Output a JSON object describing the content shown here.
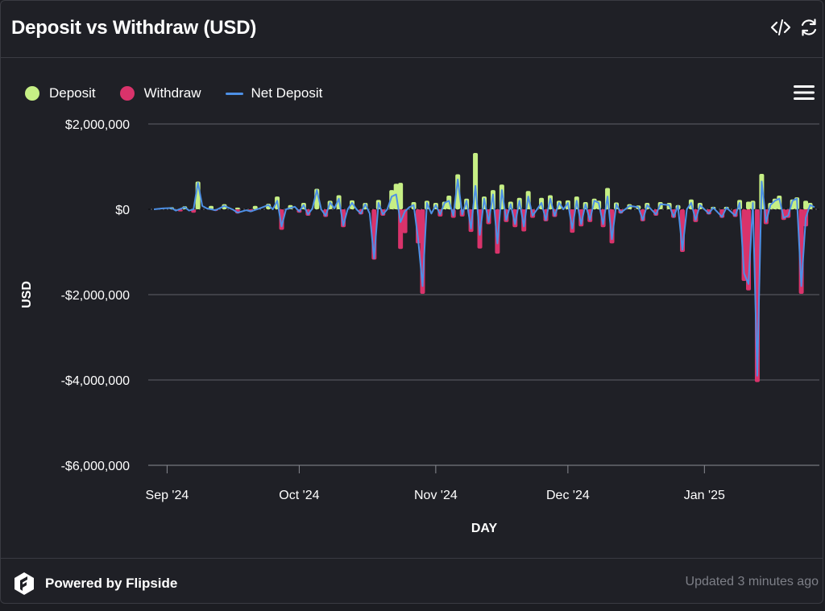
{
  "header": {
    "title": "Deposit vs Withdraw (USD)",
    "embed_icon": "code-icon",
    "refresh_icon": "refresh-icon"
  },
  "legend": {
    "items": [
      {
        "label": "Deposit",
        "color": "#c6ef85",
        "shape": "dot"
      },
      {
        "label": "Withdraw",
        "color": "#d9336b",
        "shape": "dot"
      },
      {
        "label": "Net Deposit",
        "color": "#4d90e6",
        "shape": "line"
      }
    ]
  },
  "menu_icon": "hamburger-menu-icon",
  "footer": {
    "brand": "Powered by Flipside",
    "brand_icon": "flipside-logo-icon",
    "updated": "Updated 3 minutes ago"
  },
  "chart_data": {
    "type": "bar",
    "xlabel": "DAY",
    "ylabel": "USD",
    "ylim": [
      -6000000,
      2000000
    ],
    "yticks": [
      2000000,
      0,
      -2000000,
      -4000000,
      -6000000
    ],
    "ytick_labels": [
      "$2,000,000",
      "$0",
      "-$2,000,000",
      "-$4,000,000",
      "-$6,000,000"
    ],
    "x_start": "2024-08-29",
    "x_end": "2025-01-26",
    "xticks": [
      {
        "date": "2024-09-01",
        "label": "Sep '24"
      },
      {
        "date": "2024-10-01",
        "label": "Oct '24"
      },
      {
        "date": "2024-11-01",
        "label": "Nov '24"
      },
      {
        "date": "2024-12-01",
        "label": "Dec '24"
      },
      {
        "date": "2025-01-01",
        "label": "Jan '25"
      }
    ],
    "grid": true,
    "legend_position": "top-left",
    "series": [
      {
        "name": "Deposit",
        "type": "bar",
        "color": "#c6ef85",
        "points": [
          [
            "2024-09-02",
            50000
          ],
          [
            "2024-09-05",
            70000
          ],
          [
            "2024-09-08",
            650000
          ],
          [
            "2024-09-11",
            80000
          ],
          [
            "2024-09-14",
            120000
          ],
          [
            "2024-09-17",
            40000
          ],
          [
            "2024-09-21",
            80000
          ],
          [
            "2024-09-24",
            130000
          ],
          [
            "2024-09-26",
            300000
          ],
          [
            "2024-09-29",
            100000
          ],
          [
            "2024-10-02",
            150000
          ],
          [
            "2024-10-05",
            480000
          ],
          [
            "2024-10-08",
            200000
          ],
          [
            "2024-10-10",
            330000
          ],
          [
            "2024-10-13",
            210000
          ],
          [
            "2024-10-16",
            150000
          ],
          [
            "2024-10-19",
            220000
          ],
          [
            "2024-10-22",
            450000
          ],
          [
            "2024-10-23",
            600000
          ],
          [
            "2024-10-24",
            620000
          ],
          [
            "2024-10-27",
            170000
          ],
          [
            "2024-10-30",
            200000
          ],
          [
            "2024-11-01",
            150000
          ],
          [
            "2024-11-03",
            180000
          ],
          [
            "2024-11-04",
            320000
          ],
          [
            "2024-11-06",
            820000
          ],
          [
            "2024-11-08",
            250000
          ],
          [
            "2024-11-10",
            1320000
          ],
          [
            "2024-11-12",
            300000
          ],
          [
            "2024-11-14",
            450000
          ],
          [
            "2024-11-16",
            580000
          ],
          [
            "2024-11-18",
            180000
          ],
          [
            "2024-11-20",
            270000
          ],
          [
            "2024-11-22",
            430000
          ],
          [
            "2024-11-25",
            270000
          ],
          [
            "2024-11-27",
            330000
          ],
          [
            "2024-11-29",
            200000
          ],
          [
            "2024-12-01",
            210000
          ],
          [
            "2024-12-03",
            300000
          ],
          [
            "2024-12-05",
            170000
          ],
          [
            "2024-12-07",
            250000
          ],
          [
            "2024-12-08",
            200000
          ],
          [
            "2024-12-10",
            500000
          ],
          [
            "2024-12-12",
            160000
          ],
          [
            "2024-12-15",
            120000
          ],
          [
            "2024-12-17",
            90000
          ],
          [
            "2024-12-19",
            150000
          ],
          [
            "2024-12-22",
            170000
          ],
          [
            "2024-12-24",
            150000
          ],
          [
            "2024-12-26",
            100000
          ],
          [
            "2024-12-29",
            230000
          ],
          [
            "2024-12-31",
            150000
          ],
          [
            "2025-01-03",
            60000
          ],
          [
            "2025-01-06",
            60000
          ],
          [
            "2025-01-09",
            220000
          ],
          [
            "2025-01-11",
            180000
          ],
          [
            "2025-01-12",
            200000
          ],
          [
            "2025-01-14",
            830000
          ],
          [
            "2025-01-16",
            150000
          ],
          [
            "2025-01-17",
            250000
          ],
          [
            "2025-01-18",
            320000
          ],
          [
            "2025-01-21",
            230000
          ],
          [
            "2025-01-22",
            280000
          ],
          [
            "2025-01-24",
            200000
          ],
          [
            "2025-01-25",
            150000
          ]
        ]
      },
      {
        "name": "Withdraw",
        "type": "bar",
        "color": "#d9336b",
        "points": [
          [
            "2024-09-04",
            -50000
          ],
          [
            "2024-09-07",
            -80000
          ],
          [
            "2024-09-12",
            -40000
          ],
          [
            "2024-09-17",
            -100000
          ],
          [
            "2024-09-20",
            -60000
          ],
          [
            "2024-09-27",
            -480000
          ],
          [
            "2024-10-01",
            -80000
          ],
          [
            "2024-10-03",
            -150000
          ],
          [
            "2024-10-07",
            -180000
          ],
          [
            "2024-10-11",
            -420000
          ],
          [
            "2024-10-15",
            -120000
          ],
          [
            "2024-10-18",
            -1180000
          ],
          [
            "2024-10-20",
            -150000
          ],
          [
            "2024-10-24",
            -930000
          ],
          [
            "2024-10-25",
            -560000
          ],
          [
            "2024-10-28",
            -800000
          ],
          [
            "2024-10-29",
            -1980000
          ],
          [
            "2024-11-02",
            -170000
          ],
          [
            "2024-11-05",
            -200000
          ],
          [
            "2024-11-07",
            -170000
          ],
          [
            "2024-11-09",
            -530000
          ],
          [
            "2024-11-11",
            -920000
          ],
          [
            "2024-11-13",
            -350000
          ],
          [
            "2024-11-15",
            -1040000
          ],
          [
            "2024-11-17",
            -300000
          ],
          [
            "2024-11-19",
            -420000
          ],
          [
            "2024-11-21",
            -520000
          ],
          [
            "2024-11-23",
            -200000
          ],
          [
            "2024-11-26",
            -280000
          ],
          [
            "2024-11-28",
            -180000
          ],
          [
            "2024-12-02",
            -550000
          ],
          [
            "2024-12-04",
            -400000
          ],
          [
            "2024-12-06",
            -300000
          ],
          [
            "2024-12-09",
            -420000
          ],
          [
            "2024-12-11",
            -800000
          ],
          [
            "2024-12-13",
            -100000
          ],
          [
            "2024-12-18",
            -280000
          ],
          [
            "2024-12-21",
            -150000
          ],
          [
            "2024-12-25",
            -200000
          ],
          [
            "2024-12-27",
            -1000000
          ],
          [
            "2024-12-30",
            -300000
          ],
          [
            "2025-01-02",
            -120000
          ],
          [
            "2025-01-05",
            -200000
          ],
          [
            "2025-01-08",
            -180000
          ],
          [
            "2025-01-10",
            -1680000
          ],
          [
            "2025-01-11",
            -1900000
          ],
          [
            "2025-01-13",
            -4050000
          ],
          [
            "2025-01-15",
            -350000
          ],
          [
            "2025-01-19",
            -250000
          ],
          [
            "2025-01-20",
            -200000
          ],
          [
            "2025-01-23",
            -1980000
          ],
          [
            "2025-01-24",
            -400000
          ]
        ]
      },
      {
        "name": "Net Deposit",
        "type": "line",
        "color": "#4d90e6",
        "points": [
          [
            "2024-08-29",
            0
          ],
          [
            "2024-08-31",
            20000
          ],
          [
            "2024-09-02",
            30000
          ],
          [
            "2024-09-03",
            -30000
          ],
          [
            "2024-09-05",
            50000
          ],
          [
            "2024-09-06",
            -30000
          ],
          [
            "2024-09-07",
            0
          ],
          [
            "2024-09-08",
            620000
          ],
          [
            "2024-09-09",
            80000
          ],
          [
            "2024-09-10",
            20000
          ],
          [
            "2024-09-12",
            -20000
          ],
          [
            "2024-09-14",
            80000
          ],
          [
            "2024-09-16",
            -10000
          ],
          [
            "2024-09-17",
            -80000
          ],
          [
            "2024-09-19",
            -20000
          ],
          [
            "2024-09-20",
            -50000
          ],
          [
            "2024-09-22",
            20000
          ],
          [
            "2024-09-24",
            100000
          ],
          [
            "2024-09-25",
            0
          ],
          [
            "2024-09-26",
            200000
          ],
          [
            "2024-09-27",
            -400000
          ],
          [
            "2024-09-28",
            0
          ],
          [
            "2024-09-30",
            60000
          ],
          [
            "2024-10-01",
            -50000
          ],
          [
            "2024-10-02",
            100000
          ],
          [
            "2024-10-03",
            -120000
          ],
          [
            "2024-10-04",
            20000
          ],
          [
            "2024-10-05",
            450000
          ],
          [
            "2024-10-06",
            0
          ],
          [
            "2024-10-07",
            -150000
          ],
          [
            "2024-10-08",
            160000
          ],
          [
            "2024-10-09",
            20000
          ],
          [
            "2024-10-10",
            250000
          ],
          [
            "2024-10-11",
            -380000
          ],
          [
            "2024-10-12",
            0
          ],
          [
            "2024-10-13",
            150000
          ],
          [
            "2024-10-14",
            0
          ],
          [
            "2024-10-15",
            -100000
          ],
          [
            "2024-10-16",
            120000
          ],
          [
            "2024-10-17",
            -100000
          ],
          [
            "2024-10-18",
            -1150000
          ],
          [
            "2024-10-19",
            150000
          ],
          [
            "2024-10-20",
            -120000
          ],
          [
            "2024-10-21",
            0
          ],
          [
            "2024-10-22",
            300000
          ],
          [
            "2024-10-23",
            350000
          ],
          [
            "2024-10-24",
            -300000
          ],
          [
            "2024-10-25",
            -50000
          ],
          [
            "2024-10-26",
            50000
          ],
          [
            "2024-10-27",
            100000
          ],
          [
            "2024-10-28",
            -700000
          ],
          [
            "2024-10-29",
            -1800000
          ],
          [
            "2024-10-30",
            150000
          ],
          [
            "2024-10-31",
            -100000
          ],
          [
            "2024-11-01",
            100000
          ],
          [
            "2024-11-02",
            -120000
          ],
          [
            "2024-11-03",
            150000
          ],
          [
            "2024-11-04",
            200000
          ],
          [
            "2024-11-05",
            -150000
          ],
          [
            "2024-11-06",
            700000
          ],
          [
            "2024-11-07",
            -120000
          ],
          [
            "2024-11-08",
            200000
          ],
          [
            "2024-11-09",
            -450000
          ],
          [
            "2024-11-10",
            550000
          ],
          [
            "2024-11-11",
            -600000
          ],
          [
            "2024-11-12",
            250000
          ],
          [
            "2024-11-13",
            -300000
          ],
          [
            "2024-11-14",
            350000
          ],
          [
            "2024-11-15",
            -800000
          ],
          [
            "2024-11-16",
            450000
          ],
          [
            "2024-11-17",
            -250000
          ],
          [
            "2024-11-18",
            120000
          ],
          [
            "2024-11-19",
            -350000
          ],
          [
            "2024-11-20",
            200000
          ],
          [
            "2024-11-21",
            -400000
          ],
          [
            "2024-11-22",
            300000
          ],
          [
            "2024-11-23",
            -150000
          ],
          [
            "2024-11-25",
            150000
          ],
          [
            "2024-11-26",
            -250000
          ],
          [
            "2024-11-27",
            250000
          ],
          [
            "2024-11-28",
            -150000
          ],
          [
            "2024-11-29",
            150000
          ],
          [
            "2024-11-30",
            0
          ],
          [
            "2024-12-01",
            150000
          ],
          [
            "2024-12-02",
            -450000
          ],
          [
            "2024-12-03",
            200000
          ],
          [
            "2024-12-04",
            -350000
          ],
          [
            "2024-12-05",
            120000
          ],
          [
            "2024-12-06",
            -250000
          ],
          [
            "2024-12-07",
            200000
          ],
          [
            "2024-12-08",
            150000
          ],
          [
            "2024-12-09",
            -350000
          ],
          [
            "2024-12-10",
            300000
          ],
          [
            "2024-12-11",
            -700000
          ],
          [
            "2024-12-12",
            120000
          ],
          [
            "2024-12-13",
            -80000
          ],
          [
            "2024-12-15",
            80000
          ],
          [
            "2024-12-17",
            50000
          ],
          [
            "2024-12-18",
            -250000
          ],
          [
            "2024-12-19",
            100000
          ],
          [
            "2024-12-21",
            -120000
          ],
          [
            "2024-12-22",
            120000
          ],
          [
            "2024-12-24",
            100000
          ],
          [
            "2024-12-25",
            -180000
          ],
          [
            "2024-12-26",
            80000
          ],
          [
            "2024-12-27",
            -950000
          ],
          [
            "2024-12-28",
            0
          ],
          [
            "2024-12-29",
            150000
          ],
          [
            "2024-12-30",
            -250000
          ],
          [
            "2024-12-31",
            100000
          ],
          [
            "2025-01-02",
            -100000
          ],
          [
            "2025-01-03",
            40000
          ],
          [
            "2025-01-05",
            -180000
          ],
          [
            "2025-01-06",
            40000
          ],
          [
            "2025-01-08",
            -150000
          ],
          [
            "2025-01-09",
            150000
          ],
          [
            "2025-01-10",
            -1500000
          ],
          [
            "2025-01-11",
            -1750000
          ],
          [
            "2025-01-12",
            150000
          ],
          [
            "2025-01-13",
            -3900000
          ],
          [
            "2025-01-14",
            650000
          ],
          [
            "2025-01-15",
            -300000
          ],
          [
            "2025-01-16",
            100000
          ],
          [
            "2025-01-17",
            200000
          ],
          [
            "2025-01-18",
            250000
          ],
          [
            "2025-01-19",
            -200000
          ],
          [
            "2025-01-20",
            -150000
          ],
          [
            "2025-01-21",
            200000
          ],
          [
            "2025-01-22",
            250000
          ],
          [
            "2025-01-23",
            -1800000
          ],
          [
            "2025-01-24",
            -200000
          ],
          [
            "2025-01-25",
            100000
          ],
          [
            "2025-01-26",
            50000
          ]
        ]
      }
    ]
  }
}
